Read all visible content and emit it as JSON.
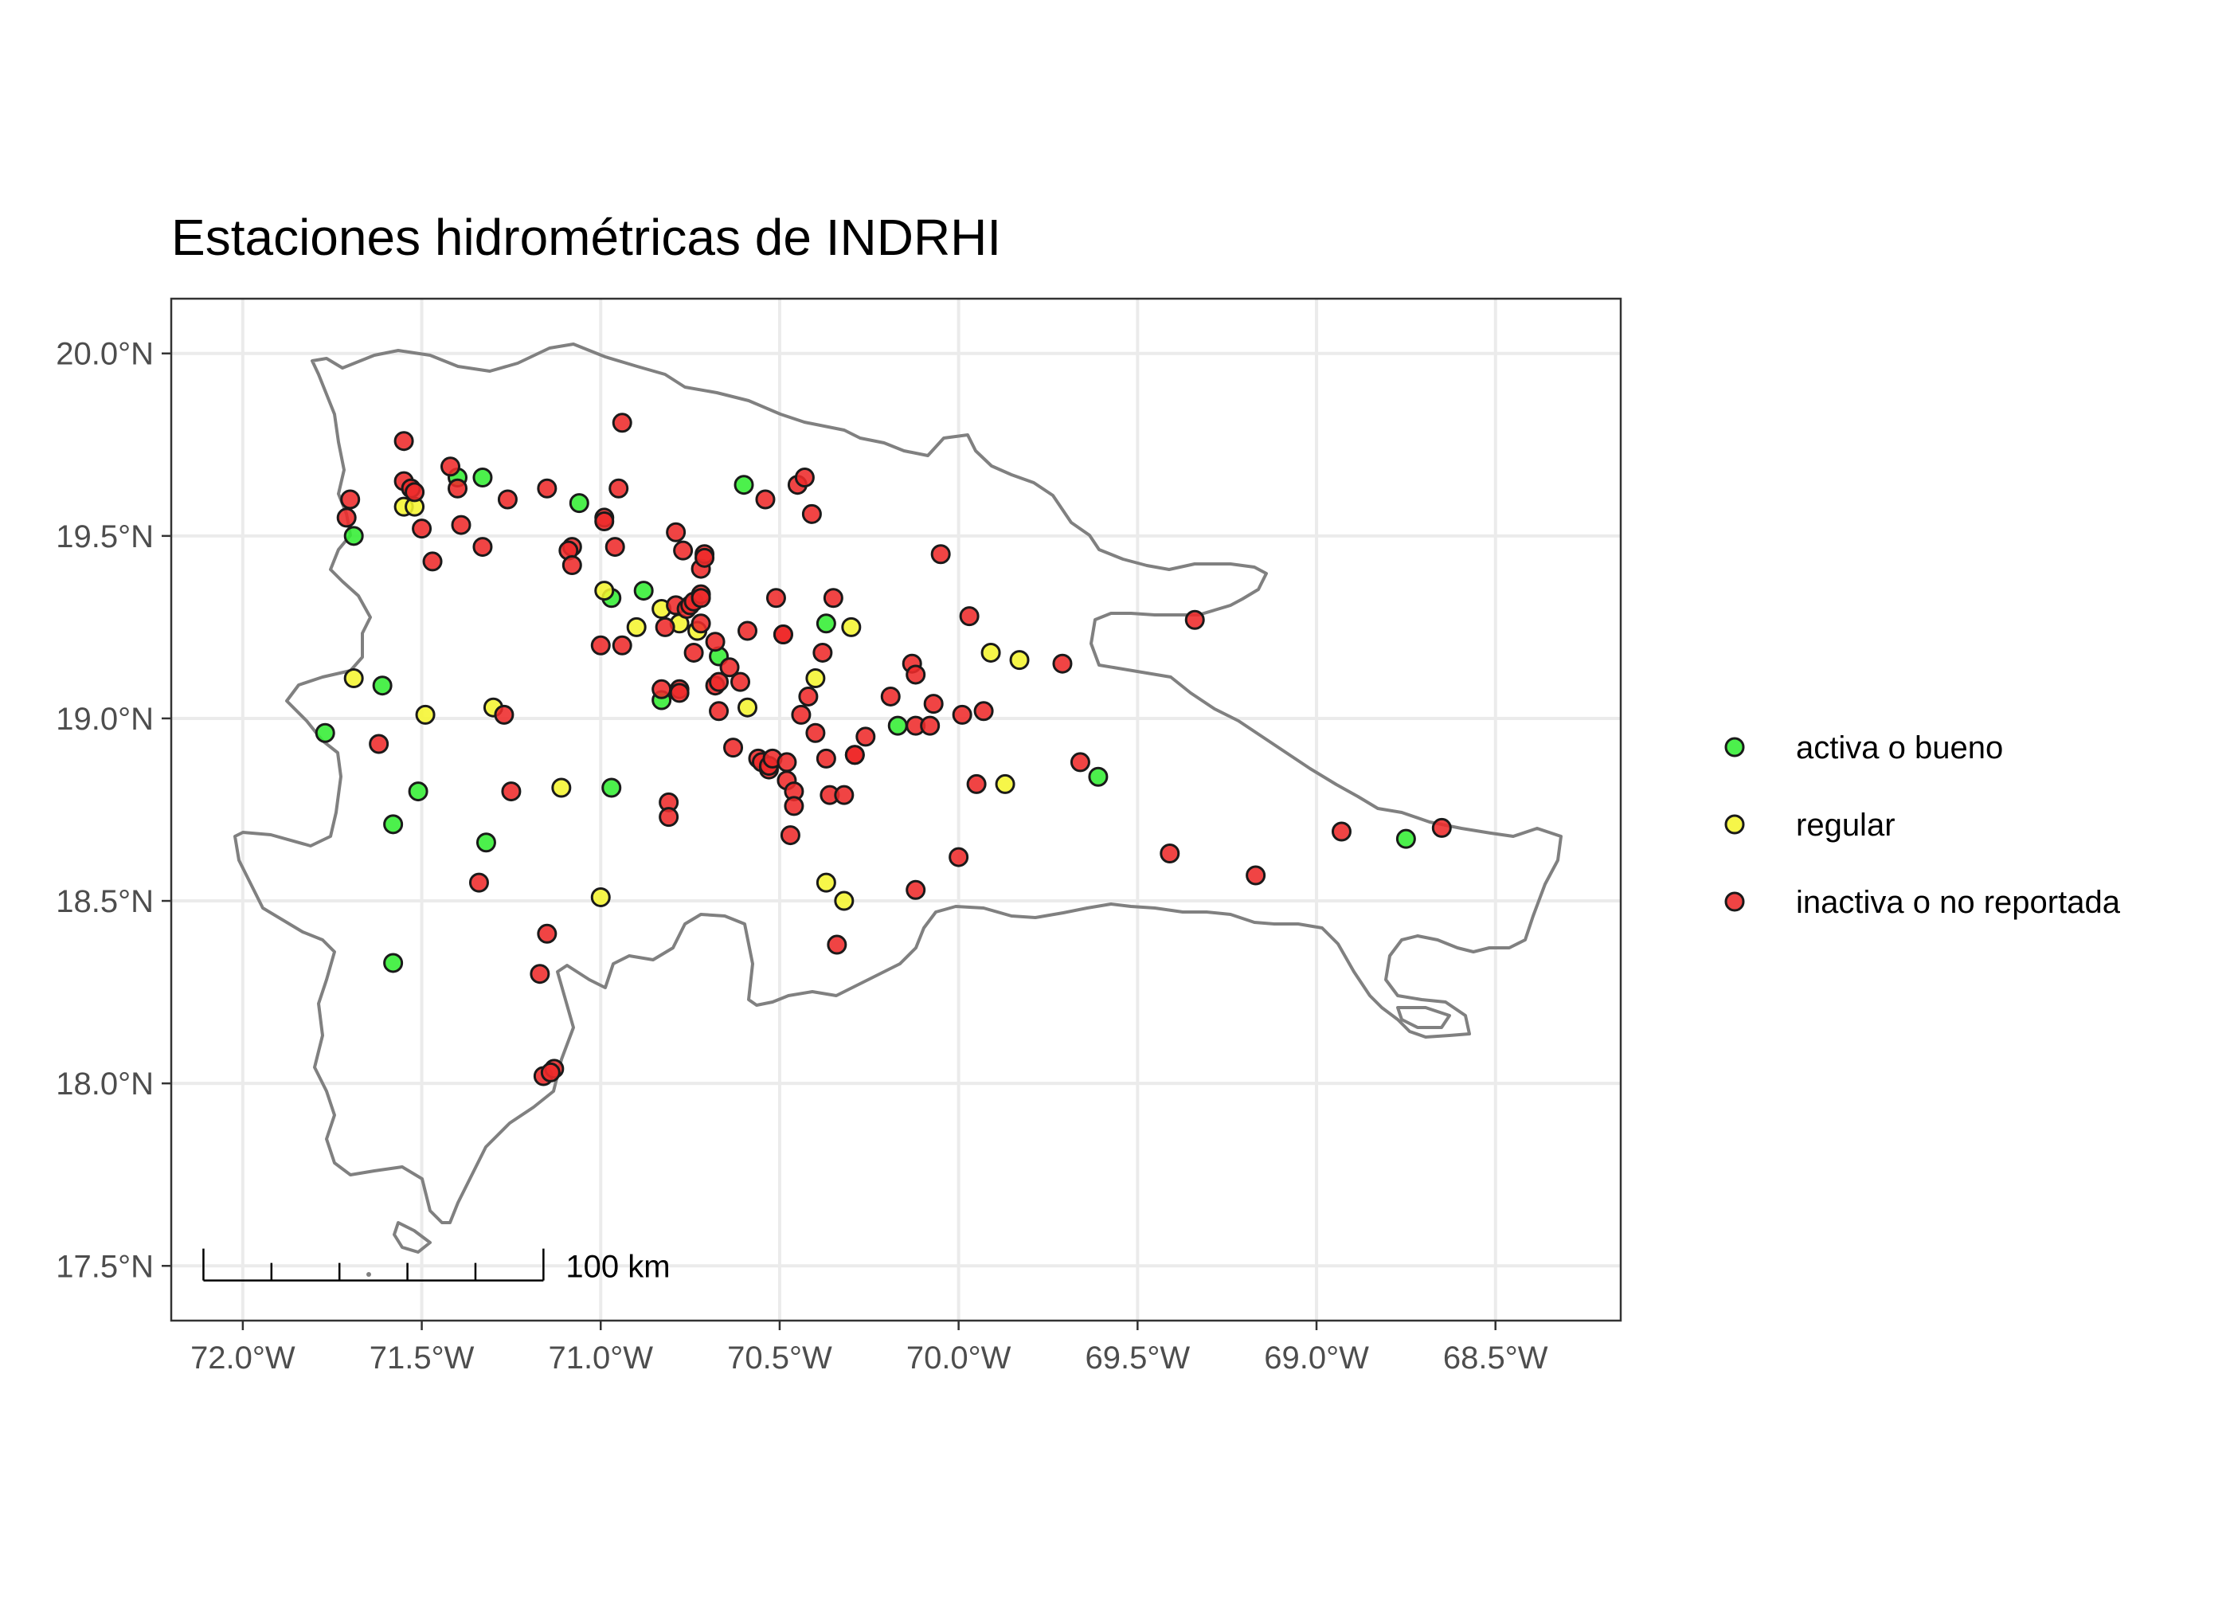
{
  "title": "Estaciones hidrométricas de INDRHI",
  "colors": {
    "activa": "#33ee33",
    "regular": "#f5f530",
    "inactiva": "#ee2a2a",
    "outline": "#808080",
    "grid": "#ebebeb"
  },
  "chart_data": {
    "type": "scatter",
    "title": "Estaciones hidrométricas de INDRHI",
    "xlim": [
      -72.2,
      -68.15
    ],
    "ylim": [
      17.35,
      20.15
    ],
    "x_ticks": [
      -72.0,
      -71.5,
      -71.0,
      -70.5,
      -70.0,
      -69.5,
      -69.0,
      -68.5
    ],
    "x_tick_labels": [
      "72.0°W",
      "71.5°W",
      "71.0°W",
      "70.5°W",
      "70.0°W",
      "69.5°W",
      "69.0°W",
      "68.5°W"
    ],
    "y_ticks": [
      17.5,
      18.0,
      18.5,
      19.0,
      19.5,
      20.0
    ],
    "y_tick_labels": [
      "17.5°N",
      "18.0°N",
      "18.5°N",
      "19.0°N",
      "19.5°N",
      "20.0°N"
    ],
    "grid": true,
    "legend_position": "right",
    "scale_bar": {
      "label": "100 km",
      "length_deg": 0.95,
      "position": "bottom-left"
    },
    "legend": [
      {
        "key": "activa",
        "label": "activa o bueno"
      },
      {
        "key": "regular",
        "label": "regular"
      },
      {
        "key": "inactiva",
        "label": "inactiva o no reportada"
      }
    ],
    "series": [
      {
        "key": "activa",
        "name": "activa o bueno",
        "points": [
          [
            -71.77,
            18.96
          ],
          [
            -71.69,
            19.5
          ],
          [
            -71.61,
            19.09
          ],
          [
            -71.58,
            18.71
          ],
          [
            -71.58,
            18.33
          ],
          [
            -71.51,
            18.8
          ],
          [
            -71.4,
            19.66
          ],
          [
            -71.33,
            19.66
          ],
          [
            -71.32,
            18.66
          ],
          [
            -71.06,
            19.59
          ],
          [
            -70.97,
            19.33
          ],
          [
            -70.97,
            18.81
          ],
          [
            -70.88,
            19.35
          ],
          [
            -70.83,
            19.05
          ],
          [
            -70.67,
            19.17
          ],
          [
            -70.6,
            19.64
          ],
          [
            -70.37,
            19.26
          ],
          [
            -70.17,
            18.98
          ],
          [
            -69.61,
            18.84
          ],
          [
            -68.75,
            18.67
          ]
        ]
      },
      {
        "key": "regular",
        "name": "regular",
        "points": [
          [
            -71.69,
            19.11
          ],
          [
            -71.55,
            19.58
          ],
          [
            -71.52,
            19.58
          ],
          [
            -71.49,
            19.01
          ],
          [
            -71.3,
            19.03
          ],
          [
            -71.11,
            18.81
          ],
          [
            -71.0,
            18.51
          ],
          [
            -70.99,
            19.35
          ],
          [
            -70.9,
            19.25
          ],
          [
            -70.83,
            19.3
          ],
          [
            -70.78,
            19.26
          ],
          [
            -70.73,
            19.24
          ],
          [
            -70.59,
            19.03
          ],
          [
            -70.4,
            19.11
          ],
          [
            -70.37,
            18.55
          ],
          [
            -70.32,
            18.5
          ],
          [
            -70.3,
            19.25
          ],
          [
            -69.91,
            19.18
          ],
          [
            -69.87,
            18.82
          ],
          [
            -69.83,
            19.16
          ]
        ]
      },
      {
        "key": "inactiva",
        "name": "inactiva o no reportada",
        "points": [
          [
            -71.7,
            19.6
          ],
          [
            -71.71,
            19.55
          ],
          [
            -71.55,
            19.76
          ],
          [
            -71.55,
            19.65
          ],
          [
            -71.53,
            19.63
          ],
          [
            -71.52,
            19.62
          ],
          [
            -71.5,
            19.52
          ],
          [
            -71.47,
            19.43
          ],
          [
            -71.62,
            18.93
          ],
          [
            -71.42,
            19.69
          ],
          [
            -71.4,
            19.63
          ],
          [
            -71.39,
            19.53
          ],
          [
            -71.33,
            19.47
          ],
          [
            -71.27,
            19.01
          ],
          [
            -71.26,
            19.6
          ],
          [
            -71.25,
            18.8
          ],
          [
            -71.34,
            18.55
          ],
          [
            -71.17,
            18.3
          ],
          [
            -71.15,
            18.41
          ],
          [
            -71.16,
            18.02
          ],
          [
            -71.13,
            18.04
          ],
          [
            -71.14,
            18.03
          ],
          [
            -71.15,
            19.63
          ],
          [
            -71.08,
            19.47
          ],
          [
            -71.09,
            19.46
          ],
          [
            -71.08,
            19.42
          ],
          [
            -71.0,
            19.2
          ],
          [
            -70.99,
            19.55
          ],
          [
            -70.99,
            19.54
          ],
          [
            -70.96,
            19.47
          ],
          [
            -70.95,
            19.63
          ],
          [
            -70.94,
            19.81
          ],
          [
            -70.94,
            19.2
          ],
          [
            -70.83,
            19.08
          ],
          [
            -70.82,
            19.25
          ],
          [
            -70.81,
            18.77
          ],
          [
            -70.81,
            18.73
          ],
          [
            -70.79,
            19.51
          ],
          [
            -70.79,
            19.31
          ],
          [
            -70.78,
            19.08
          ],
          [
            -70.78,
            19.07
          ],
          [
            -70.77,
            19.46
          ],
          [
            -70.76,
            19.3
          ],
          [
            -70.75,
            19.31
          ],
          [
            -70.74,
            19.32
          ],
          [
            -70.74,
            19.18
          ],
          [
            -70.72,
            19.41
          ],
          [
            -70.71,
            19.45
          ],
          [
            -70.71,
            19.44
          ],
          [
            -70.72,
            19.34
          ],
          [
            -70.72,
            19.33
          ],
          [
            -70.72,
            19.26
          ],
          [
            -70.68,
            19.21
          ],
          [
            -70.68,
            19.09
          ],
          [
            -70.67,
            19.1
          ],
          [
            -70.67,
            19.02
          ],
          [
            -70.64,
            19.14
          ],
          [
            -70.63,
            18.92
          ],
          [
            -70.61,
            19.1
          ],
          [
            -70.59,
            19.24
          ],
          [
            -70.56,
            18.89
          ],
          [
            -70.55,
            18.88
          ],
          [
            -70.54,
            19.6
          ],
          [
            -70.53,
            18.86
          ],
          [
            -70.53,
            18.87
          ],
          [
            -70.52,
            18.89
          ],
          [
            -70.51,
            19.33
          ],
          [
            -70.49,
            19.23
          ],
          [
            -70.49,
            19.23
          ],
          [
            -70.48,
            18.88
          ],
          [
            -70.48,
            18.83
          ],
          [
            -70.47,
            18.68
          ],
          [
            -70.46,
            18.8
          ],
          [
            -70.46,
            18.76
          ],
          [
            -70.45,
            19.64
          ],
          [
            -70.44,
            19.01
          ],
          [
            -70.43,
            19.66
          ],
          [
            -70.42,
            19.06
          ],
          [
            -70.41,
            19.56
          ],
          [
            -70.4,
            18.96
          ],
          [
            -70.38,
            19.18
          ],
          [
            -70.37,
            18.89
          ],
          [
            -70.36,
            18.79
          ],
          [
            -70.35,
            19.33
          ],
          [
            -70.34,
            18.38
          ],
          [
            -70.32,
            18.79
          ],
          [
            -70.29,
            18.9
          ],
          [
            -70.29,
            18.9
          ],
          [
            -70.26,
            18.95
          ],
          [
            -70.19,
            19.06
          ],
          [
            -70.13,
            19.15
          ],
          [
            -70.12,
            19.12
          ],
          [
            -70.12,
            18.53
          ],
          [
            -70.12,
            18.98
          ],
          [
            -70.08,
            18.98
          ],
          [
            -70.07,
            19.04
          ],
          [
            -70.05,
            19.45
          ],
          [
            -70.0,
            18.62
          ],
          [
            -69.99,
            19.01
          ],
          [
            -69.97,
            19.28
          ],
          [
            -69.95,
            18.82
          ],
          [
            -69.93,
            19.02
          ],
          [
            -69.71,
            19.15
          ],
          [
            -69.66,
            18.88
          ],
          [
            -69.41,
            18.63
          ],
          [
            -69.34,
            19.27
          ],
          [
            -69.17,
            18.57
          ],
          [
            -68.93,
            18.69
          ],
          [
            -68.65,
            18.7
          ]
        ]
      }
    ]
  }
}
